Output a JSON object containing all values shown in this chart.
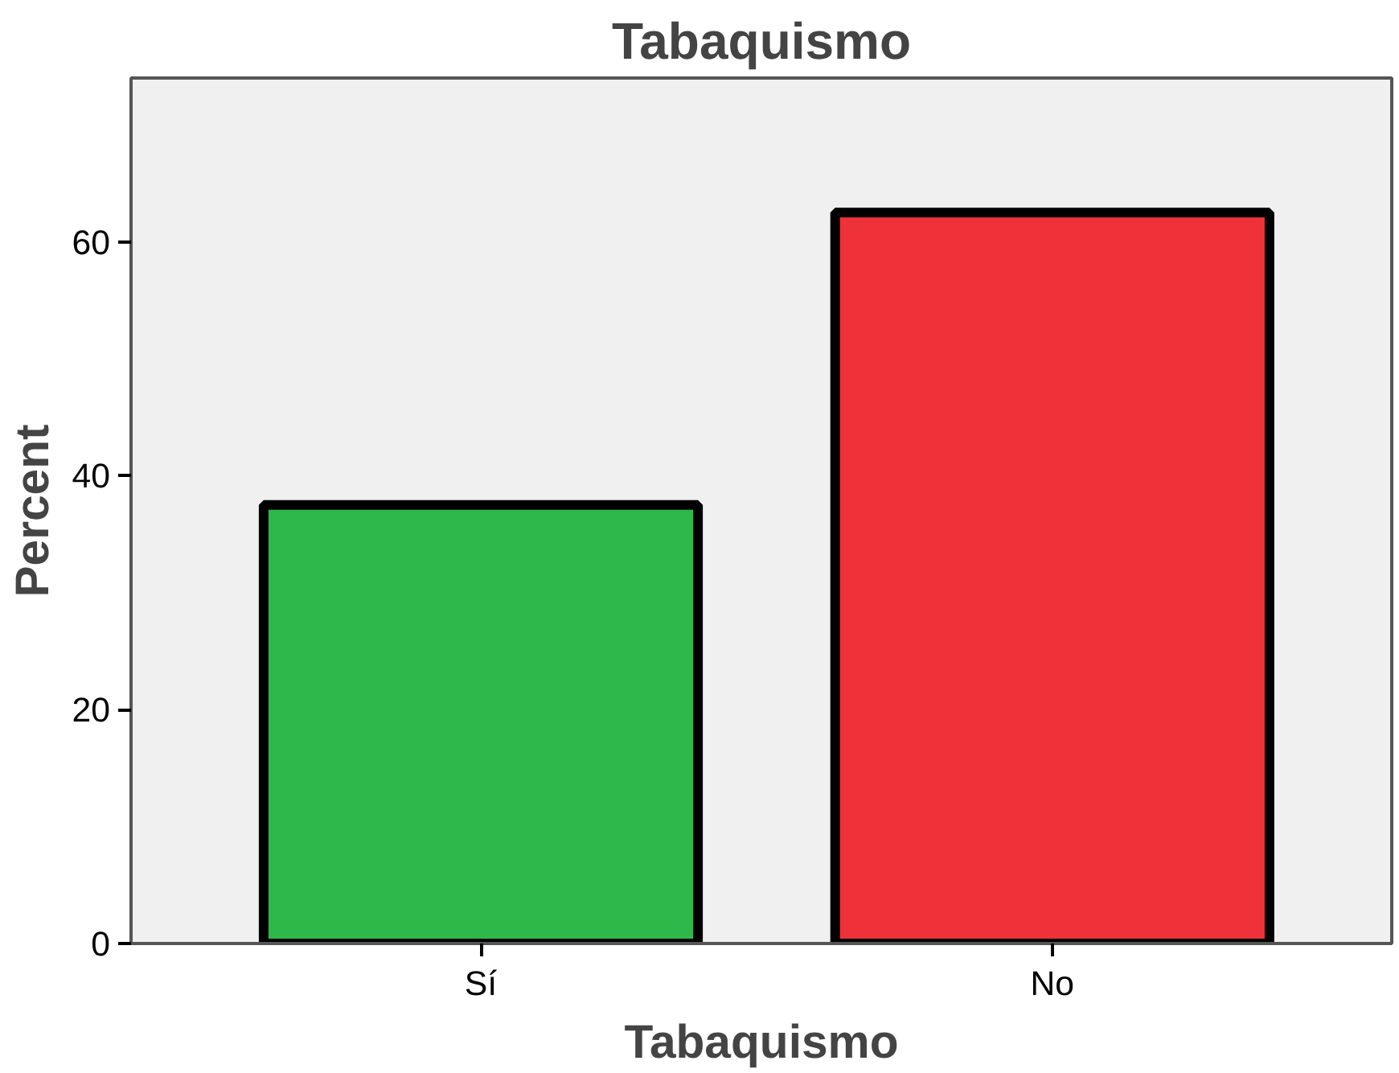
{
  "chart_data": {
    "type": "bar",
    "title": "Tabaquismo",
    "xlabel": "Tabaquismo",
    "ylabel": "Percent",
    "categories": [
      "Sí",
      "No"
    ],
    "values": [
      37.5,
      62.5
    ],
    "colors": [
      "#2eb84a",
      "#ef323a"
    ],
    "ylim": [
      0,
      74
    ],
    "yticks": [
      0,
      20,
      40,
      60
    ],
    "grid": false
  }
}
